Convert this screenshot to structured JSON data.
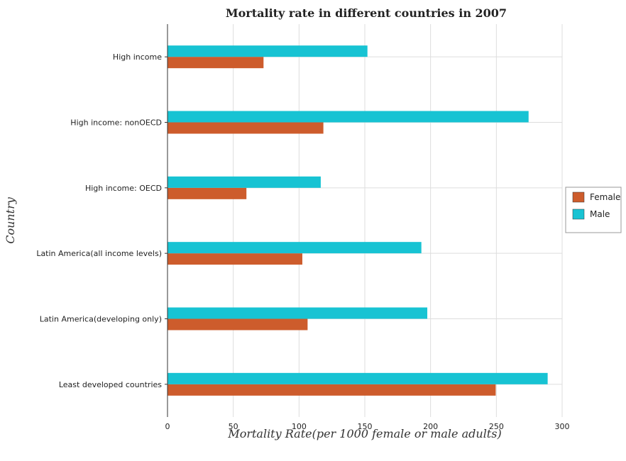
{
  "colors": {
    "female": "#cd5c2c",
    "male": "#17c3d3",
    "grid": "#dddddd",
    "axis": "#333333"
  },
  "chart_data": {
    "type": "bar",
    "orientation": "horizontal",
    "title": "Mortality rate in different countries in 2007",
    "xlabel": "Mortality Rate(per 1000 female or male adults)",
    "ylabel": "Country",
    "categories": [
      "High income",
      "High income: nonOECD",
      "High income: OECD",
      "Latin America(all income levels)",
      "Latin America(developing only)",
      "Least developed countries"
    ],
    "series": [
      {
        "name": "Female",
        "values": [
          73,
          118.5,
          60,
          102.5,
          106.5,
          249.5
        ]
      },
      {
        "name": "Male",
        "values": [
          152,
          274.5,
          116.5,
          193,
          197.5,
          289
        ]
      }
    ],
    "xlim": [
      0,
      300
    ],
    "xticks": [
      0,
      50,
      100,
      150,
      200,
      250,
      300
    ],
    "grid": true,
    "legend_position": "right"
  }
}
